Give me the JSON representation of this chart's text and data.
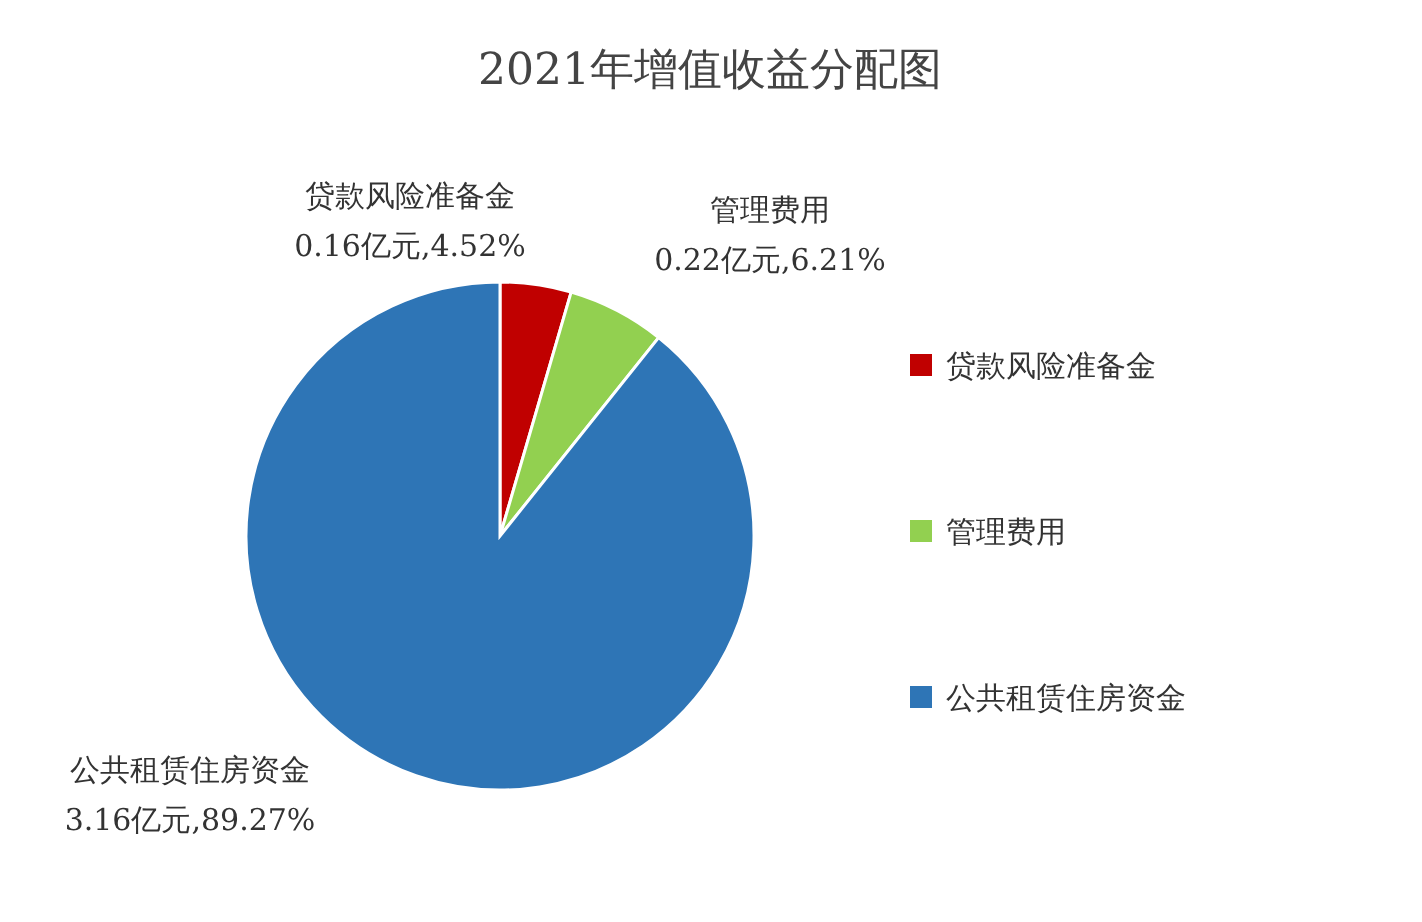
{
  "chart_data": {
    "type": "pie",
    "title": "2021年增值收益分配图",
    "categories": [
      "贷款风险准备金",
      "管理费用",
      "公共租赁住房资金"
    ],
    "values": [
      0.16,
      0.22,
      3.16
    ],
    "value_labels": [
      "0.16亿元,4.52%",
      "0.22亿元,6.21%",
      "3.16亿元,89.27%"
    ],
    "colors": [
      "#c00000",
      "#92d050",
      "#2e75b6"
    ],
    "legend": "right"
  }
}
